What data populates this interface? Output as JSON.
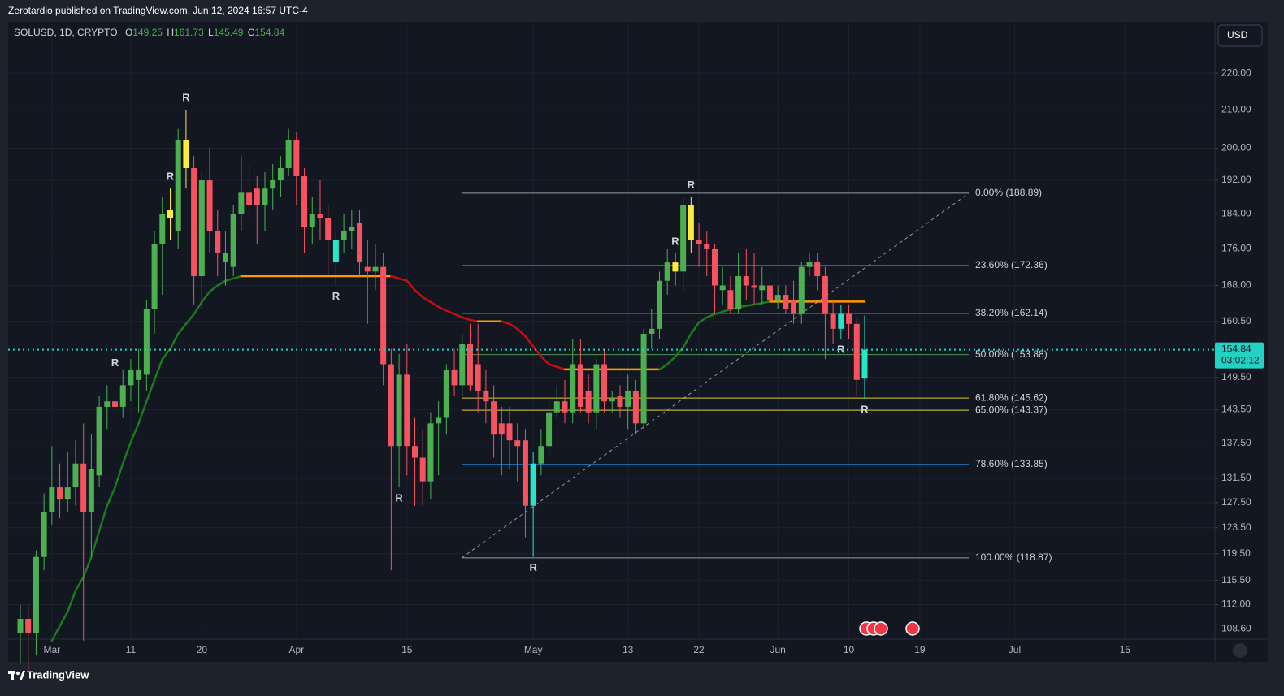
{
  "header": "Zerotardio published on TradingView.com, Jun 12, 2024 16:57 UTC-4",
  "footer": "TradingView",
  "chart_data": {
    "type": "candlestick",
    "symbol": "SOLUSD, 1D, CRYPTO",
    "ohlc_labels": [
      "O",
      "H",
      "L",
      "C"
    ],
    "currency": "USD",
    "countdown": "03:02:12",
    "log_scale": true,
    "grid": true,
    "up_color": "#4caf50",
    "down_color": "#f7525f",
    "price_line_color": "#22d3c5",
    "x": [
      "Feb 26",
      "Feb 27",
      "Feb 28",
      "Feb 29",
      "Mar 1",
      "Mar 2",
      "Mar 3",
      "Mar 4",
      "Mar 5",
      "Mar 6",
      "Mar 7",
      "Mar 8",
      "Mar 9",
      "Mar 10",
      "Mar 11",
      "Mar 12",
      "Mar 13",
      "Mar 14",
      "Mar 15",
      "Mar 16",
      "Mar 17",
      "Mar 18",
      "Mar 19",
      "Mar 20",
      "Mar 21",
      "Mar 22",
      "Mar 23",
      "Mar 24",
      "Mar 25",
      "Mar 26",
      "Mar 27",
      "Mar 28",
      "Mar 29",
      "Mar 30",
      "Mar 31",
      "Apr 1",
      "Apr 2",
      "Apr 3",
      "Apr 4",
      "Apr 5",
      "Apr 6",
      "Apr 7",
      "Apr 8",
      "Apr 9",
      "Apr 10",
      "Apr 11",
      "Apr 12",
      "Apr 13",
      "Apr 14",
      "Apr 15",
      "Apr 16",
      "Apr 17",
      "Apr 18",
      "Apr 19",
      "Apr 20",
      "Apr 21",
      "Apr 22",
      "Apr 23",
      "Apr 24",
      "Apr 25",
      "Apr 26",
      "Apr 27",
      "Apr 28",
      "Apr 29",
      "Apr 30",
      "May 1",
      "May 2",
      "May 3",
      "May 4",
      "May 5",
      "May 6",
      "May 7",
      "May 8",
      "May 9",
      "May 10",
      "May 11",
      "May 12",
      "May 13",
      "May 14",
      "May 15",
      "May 16",
      "May 17",
      "May 18",
      "May 19",
      "May 20",
      "May 21",
      "May 22",
      "May 23",
      "May 24",
      "May 25",
      "May 26",
      "May 27",
      "May 28",
      "May 29",
      "May 30",
      "May 31",
      "Jun 1",
      "Jun 2",
      "Jun 3",
      "Jun 4",
      "Jun 5",
      "Jun 6",
      "Jun 7",
      "Jun 8",
      "Jun 9",
      "Jun 10",
      "Jun 11",
      "Jun 12"
    ],
    "open": [
      108,
      110,
      108,
      119,
      126,
      130,
      128,
      130,
      134,
      126,
      132,
      144,
      145,
      144,
      148,
      149,
      150,
      163,
      177,
      185,
      180,
      202,
      195,
      170,
      192,
      180,
      173,
      172,
      184,
      189,
      190,
      186,
      190,
      192,
      195,
      202,
      193,
      181,
      184,
      183,
      173,
      178,
      180,
      182,
      172,
      171,
      172,
      152,
      137,
      150,
      137,
      135,
      131,
      141,
      142,
      151,
      148,
      156,
      152,
      147,
      145,
      141,
      141,
      138,
      138,
      127,
      134,
      137,
      143,
      145,
      143,
      152,
      147,
      143,
      152,
      145,
      146,
      144,
      147,
      141,
      158,
      159,
      169,
      173,
      171,
      186,
      178,
      177,
      176,
      167,
      167,
      163,
      170,
      168,
      167,
      168,
      165,
      166,
      165,
      162,
      172,
      173,
      170,
      162,
      159,
      162,
      160,
      149.25
    ],
    "high": [
      112,
      112,
      120,
      129,
      137,
      134,
      136,
      138,
      141,
      139,
      146,
      148,
      150,
      151,
      153,
      155,
      165,
      180,
      188,
      190,
      205,
      210,
      198,
      194,
      200,
      185,
      180,
      186,
      198,
      196,
      193,
      194,
      196,
      198,
      205,
      204,
      195,
      188,
      192,
      186,
      180,
      184,
      185,
      185,
      178,
      177,
      175,
      155,
      154,
      156,
      142,
      140,
      143,
      145,
      152,
      155,
      158,
      160,
      160,
      151,
      148,
      144,
      144,
      141,
      140,
      136,
      140,
      146,
      148,
      149,
      157,
      157,
      150,
      153,
      155,
      147,
      148,
      150,
      149,
      159,
      163,
      171,
      176,
      175,
      188,
      188,
      182,
      180,
      177,
      172,
      170,
      175,
      176,
      175,
      172,
      171,
      168,
      168,
      169,
      173,
      175,
      175,
      172,
      165,
      164,
      164,
      161,
      161.73
    ],
    "low": [
      104,
      103,
      105,
      117,
      124,
      125,
      126,
      127,
      107,
      119,
      130,
      140,
      142,
      142,
      145,
      143,
      147,
      158,
      166,
      178,
      176,
      190,
      164,
      163,
      175,
      170,
      168,
      170,
      180,
      183,
      177,
      180,
      185,
      188,
      193,
      186,
      175,
      177,
      178,
      170,
      168,
      175,
      176,
      170,
      160,
      167,
      148,
      117,
      130,
      132,
      127,
      127,
      128,
      132,
      139,
      146,
      146,
      147,
      143,
      141,
      135,
      132,
      133,
      131,
      122,
      119,
      132,
      135,
      142,
      141,
      141,
      143,
      141,
      140,
      143,
      143,
      142,
      140,
      139,
      140,
      155,
      157,
      166,
      168,
      167,
      175,
      172,
      170,
      162,
      164,
      162,
      162,
      165,
      164,
      164,
      163,
      163,
      162,
      160,
      160,
      170,
      167,
      153,
      156,
      157,
      157,
      146,
      145.49
    ],
    "close": [
      110,
      108,
      119,
      126,
      130,
      128,
      130,
      134,
      126,
      133,
      144,
      145,
      144,
      148,
      151,
      151,
      163,
      177,
      184,
      183,
      202,
      195,
      170,
      192,
      180,
      175,
      175,
      184,
      189,
      186,
      186,
      190,
      192,
      195,
      202,
      193,
      181,
      184,
      183,
      178,
      178,
      180,
      181,
      173,
      171,
      172,
      152,
      137,
      150,
      137,
      135,
      131,
      141,
      142,
      151,
      148,
      156,
      148,
      147,
      145,
      139,
      139,
      138,
      137,
      127,
      134,
      137,
      143,
      145,
      143,
      152,
      144,
      143,
      152,
      145,
      145.5,
      144,
      147,
      141,
      158,
      159,
      169,
      173,
      171,
      186,
      178,
      177,
      176,
      168,
      168,
      163,
      170,
      168,
      167.5,
      168,
      165,
      166,
      163,
      162,
      172,
      173,
      170,
      162,
      159,
      162,
      160,
      149,
      154.84
    ],
    "highlights": [
      {
        "date": "Mar 16",
        "color": "#ffeb3b"
      },
      {
        "date": "Mar 18",
        "color": "#ffeb3b"
      },
      {
        "date": "May 19",
        "color": "#ffeb3b"
      },
      {
        "date": "May 21",
        "color": "#ffeb3b"
      },
      {
        "date": "Apr 6",
        "color": "#26e6c8"
      },
      {
        "date": "May 1",
        "color": "#26e6c8"
      },
      {
        "date": "Jun 9",
        "color": "#26e6c8"
      },
      {
        "date": "Jun 12",
        "color": "#26e6c8"
      }
    ],
    "ma": {
      "up_color": "#1b7a1b",
      "down_color": "#c21010",
      "flat_color": "#ff9800",
      "values": [
        null,
        null,
        null,
        null,
        107,
        109,
        111,
        114,
        116,
        119,
        123,
        127,
        130,
        134,
        137.7,
        141,
        145,
        149,
        153,
        155,
        158,
        160,
        162,
        164.5,
        166.7,
        168,
        169,
        169.5,
        170,
        170,
        170,
        170,
        170,
        170,
        170,
        170,
        170,
        170,
        170,
        170,
        170,
        170,
        170,
        170,
        170,
        170,
        170,
        170,
        169.5,
        169,
        167,
        165.5,
        164.5,
        163.5,
        162.7,
        162,
        161.3,
        160.8,
        160.5,
        160.5,
        160.5,
        160.5,
        160,
        159,
        157.5,
        155.5,
        153.5,
        152,
        151.5,
        151,
        151,
        151,
        151,
        151,
        151,
        151,
        151,
        151,
        151,
        151,
        151,
        151,
        152,
        153.5,
        155.3,
        158,
        160.3,
        161.3,
        162,
        162.5,
        163,
        163.4,
        163.7,
        164,
        164.3,
        164.6,
        164.6,
        164.6,
        164.6,
        164.6,
        164.6,
        164.6,
        164.6,
        164.6,
        164.6,
        164.6,
        164.6,
        164.6
      ]
    },
    "fib_levels": [
      {
        "label": "0.00% (188.89)",
        "value": 188.89,
        "color": "#b2b5be"
      },
      {
        "label": "23.60% (172.36)",
        "value": 172.36,
        "color": "#f23645"
      },
      {
        "label": "38.20% (162.14)",
        "value": 162.14,
        "color": "#c0ca33"
      },
      {
        "label": "50.00% (153.88)",
        "value": 153.88,
        "color": "#4caf50"
      },
      {
        "label": "61.80% (145.62)",
        "value": 145.62,
        "color": "#ffeb3b"
      },
      {
        "label": "65.00% (143.37)",
        "value": 143.37,
        "color": "#ffeb3b"
      },
      {
        "label": "78.60% (133.85)",
        "value": 133.85,
        "color": "#2196f3"
      },
      {
        "label": "100.00% (118.87)",
        "value": 118.87,
        "color": "#b2b5be"
      }
    ],
    "annotations": [
      {
        "text": "R",
        "date": "Mar 9",
        "color": "#ffeb3b",
        "position": "above"
      },
      {
        "text": "R",
        "date": "Mar 16",
        "color": "#ffeb3b",
        "position": "above"
      },
      {
        "text": "R",
        "date": "Mar 18",
        "color": "#ffeb3b",
        "position": "above"
      },
      {
        "text": "R",
        "date": "May 19",
        "color": "#ffeb3b",
        "position": "above"
      },
      {
        "text": "R",
        "date": "May 21",
        "color": "#ffeb3b",
        "position": "above"
      },
      {
        "text": "R",
        "date": "Apr 6",
        "color": "#26e6c8",
        "position": "below"
      },
      {
        "text": "R",
        "date": "Apr 14",
        "color": "#26e6c8",
        "position": "below"
      },
      {
        "text": "R",
        "date": "May 1",
        "color": "#26e6c8",
        "position": "below"
      },
      {
        "text": "R",
        "date": "Jun 9",
        "color": "#26e6c8",
        "position": "below"
      },
      {
        "text": "R",
        "date": "Jun 12",
        "color": "#26e6c8",
        "position": "below"
      }
    ],
    "ylim": [
      107.2,
      234.8
    ],
    "yticks": [
      {
        "value": 220,
        "label": "220.00"
      },
      {
        "value": 210,
        "label": "210.00"
      },
      {
        "value": 200,
        "label": "200.00"
      },
      {
        "value": 192,
        "label": "192.00"
      },
      {
        "value": 184,
        "label": "184.00"
      },
      {
        "value": 176,
        "label": "176.00"
      },
      {
        "value": 168,
        "label": "168.00"
      },
      {
        "value": 160.5,
        "label": "160.50"
      },
      {
        "value": 149.5,
        "label": "149.50"
      },
      {
        "value": 143.5,
        "label": "143.50"
      },
      {
        "value": 137.5,
        "label": "137.50"
      },
      {
        "value": 131.5,
        "label": "131.50"
      },
      {
        "value": 127.5,
        "label": "127.50"
      },
      {
        "value": 123.5,
        "label": "123.50"
      },
      {
        "value": 119.5,
        "label": "119.50"
      },
      {
        "value": 115.5,
        "label": "115.50"
      },
      {
        "value": 112,
        "label": "112.00"
      },
      {
        "value": 108.6,
        "label": "108.60"
      }
    ],
    "xticks": [
      {
        "value": "Mar 1",
        "label": "Mar"
      },
      {
        "value": "Mar 11",
        "label": "11"
      },
      {
        "value": "Mar 20",
        "label": "20"
      },
      {
        "value": "Apr 1",
        "label": "Apr"
      },
      {
        "value": "Apr 15",
        "label": "15"
      },
      {
        "value": "May 1",
        "label": "May"
      },
      {
        "value": "May 13",
        "label": "13"
      },
      {
        "value": "May 22",
        "label": "22"
      },
      {
        "value": "Jun 1",
        "label": "Jun"
      },
      {
        "value": "Jun 10",
        "label": "10"
      },
      {
        "value": "Jun 19",
        "label": "19"
      },
      {
        "value": "Jul 1",
        "label": "Jul"
      },
      {
        "value": "Jul 15",
        "label": "15"
      }
    ]
  }
}
